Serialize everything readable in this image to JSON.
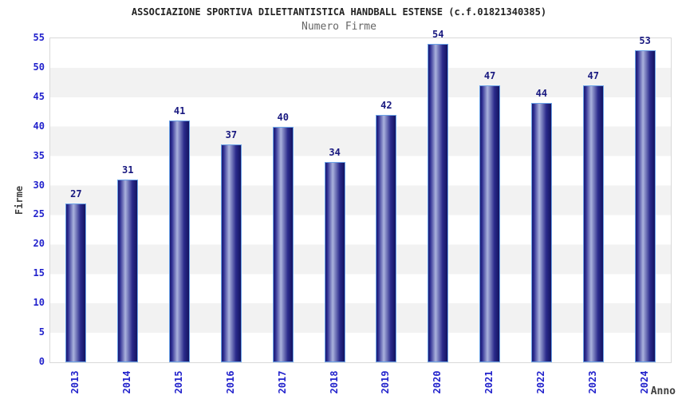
{
  "header": {
    "title": "ASSOCIAZIONE SPORTIVA DILETTANTISTICA HANDBALL ESTENSE (c.f.01821340385)",
    "subtitle": "Numero Firme"
  },
  "chart_data": {
    "type": "bar",
    "title": "ASSOCIAZIONE SPORTIVA DILETTANTISTICA HANDBALL ESTENSE (c.f.01821340385)",
    "subtitle": "Numero Firme",
    "categories": [
      "2013",
      "2014",
      "2015",
      "2016",
      "2017",
      "2018",
      "2019",
      "2020",
      "2021",
      "2022",
      "2023",
      "2024"
    ],
    "values": [
      27,
      31,
      41,
      37,
      40,
      34,
      42,
      54,
      47,
      44,
      47,
      53
    ],
    "xlabel": "Anno",
    "ylabel": "Firme",
    "ylim": [
      0,
      55
    ],
    "ytick_step": 5,
    "legend": "none",
    "grid": "alternating-horizontal-bands",
    "colors": {
      "tick_label_blue": "#2222cc",
      "value_label_navy": "#191980",
      "axis_title_gray": "#404040",
      "title_color": "#222222",
      "subtitle_color": "#666666",
      "band_white": "#ffffff",
      "band_gray": "#f2f2f2",
      "plot_border": "#d9d9d9",
      "bar_outline": "#6ba3e8",
      "bar_gradient": [
        "#1a1a70 0%",
        "#2e2e92 10%",
        "#aab2dd 38%",
        "#2b2b8c 74%",
        "#131360 100%"
      ]
    }
  }
}
